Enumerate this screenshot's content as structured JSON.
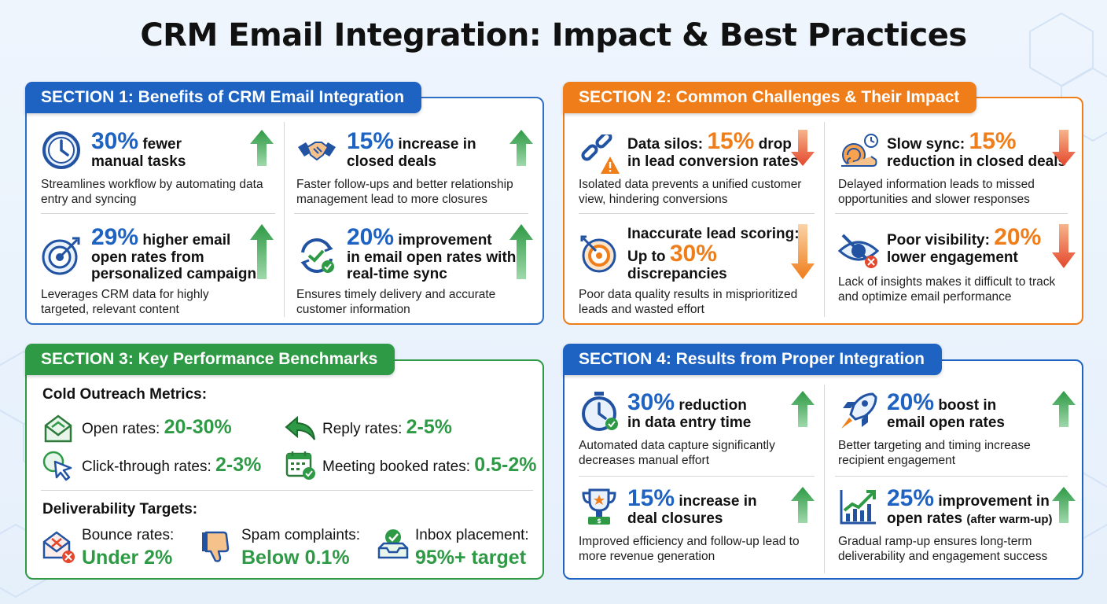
{
  "title": "CRM Email Integration: Impact & Best Practices",
  "colors": {
    "blue": "#1f63c2",
    "orange": "#ef7d1a",
    "green": "#2e9a45",
    "red": "#e4472c",
    "accent_blue": "#1f63c2"
  },
  "s1": {
    "label": "SECTION 1: Benefits of CRM Email Integration",
    "items": [
      {
        "big": "30%",
        "head": "fewer",
        "head2": "manual tasks",
        "desc": "Streamlines workflow by automating data entry and syncing",
        "icon": "clock-icon"
      },
      {
        "big": "15%",
        "head": "increase in",
        "head2": "closed deals",
        "desc": "Faster follow-ups and better relationship management lead to more closures",
        "icon": "handshake-icon"
      },
      {
        "big": "29%",
        "head": "higher email",
        "head2": "open rates from",
        "head3": "personalized campaigns",
        "desc": "Leverages CRM data for highly targeted, relevant content",
        "icon": "target-icon"
      },
      {
        "big": "20%",
        "head": "improvement",
        "head2": "in email open rates with",
        "head3": "real-time sync",
        "desc": "Ensures timely delivery and accurate customer information",
        "icon": "sync-icon"
      }
    ]
  },
  "s2": {
    "label": "SECTION 2: Common Challenges & Their Impact",
    "items": [
      {
        "pre": "Data silos:",
        "big": "15%",
        "post": "drop",
        "head2": "in lead conversion rates",
        "desc": "Isolated data prevents a unified customer view, hindering conversions",
        "icon": "broken-link-icon"
      },
      {
        "pre": "Slow sync:",
        "big": "15%",
        "head2": "reduction in closed deals",
        "desc": "Delayed information leads to missed opportunities and slower responses",
        "icon": "snail-icon"
      },
      {
        "pre": "Inaccurate lead scoring:",
        "pre2": "Up to",
        "big": "30%",
        "head3": "discrepancies",
        "desc": "Poor data quality results in misprioritized leads and wasted effort",
        "icon": "missed-target-icon"
      },
      {
        "pre": "Poor visibility:",
        "big": "20%",
        "head2": "lower engagement",
        "desc": "Lack of insights makes it difficult to track and optimize email performance",
        "icon": "hidden-eye-icon"
      }
    ]
  },
  "s3": {
    "label": "SECTION 3: Key Performance Benchmarks",
    "cold_title": "Cold Outreach Metrics:",
    "cold": [
      {
        "label": "Open rates:",
        "value": "20-30%",
        "icon": "open-envelope-icon"
      },
      {
        "label": "Reply rates:",
        "value": "2-5%",
        "icon": "reply-arrow-icon"
      },
      {
        "label": "Click-through rates:",
        "value": "2-3%",
        "icon": "cursor-click-icon"
      },
      {
        "label": "Meeting booked rates:",
        "value": "0.5-2%",
        "icon": "calendar-check-icon"
      }
    ],
    "deliv_title": "Deliverability Targets:",
    "deliv": [
      {
        "label": "Bounce rates:",
        "value": "Under 2%",
        "icon": "bounced-mail-icon"
      },
      {
        "label": "Spam complaints:",
        "value": "Below 0.1%",
        "icon": "thumbs-down-icon"
      },
      {
        "label": "Inbox placement:",
        "value": "95%+ target",
        "icon": "inbox-check-icon"
      }
    ]
  },
  "s4": {
    "label": "SECTION 4: Results from Proper Integration",
    "items": [
      {
        "big": "30%",
        "head": "reduction",
        "head2": "in data entry time",
        "desc": "Automated data capture significantly decreases manual effort",
        "icon": "stopwatch-icon"
      },
      {
        "big": "20%",
        "head": "boost in",
        "head2": "email open rates",
        "desc": "Better targeting and timing increase recipient engagement",
        "icon": "rocket-icon"
      },
      {
        "big": "15%",
        "head": "increase in",
        "head2": "deal closures",
        "desc": "Improved efficiency and follow-up lead to more revenue generation",
        "icon": "trophy-icon"
      },
      {
        "big": "25%",
        "head": "improvement in",
        "head2": "open rates",
        "head2small": "(after warm-up)",
        "desc": "Gradual ramp-up ensures long-term deliverability and engagement success",
        "icon": "growth-chart-icon"
      }
    ]
  }
}
